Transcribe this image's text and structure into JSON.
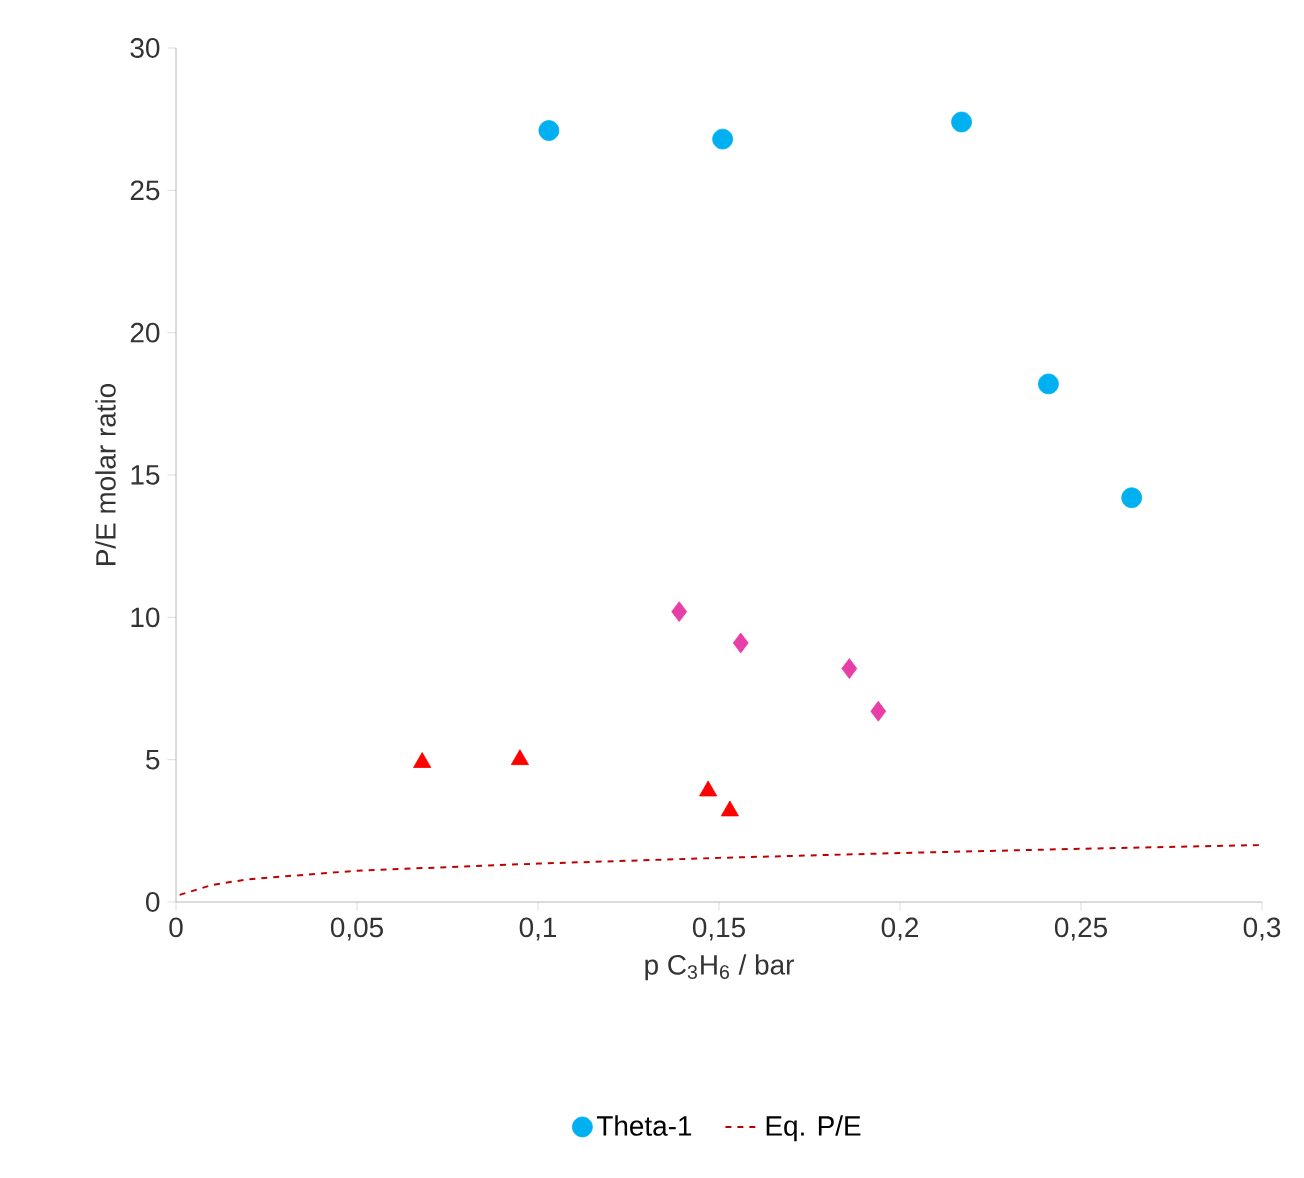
{
  "chart_data": {
    "type": "scatter",
    "xlabel": "p C$_{3}$H$_{6}$ / bar",
    "ylabel": "P/E molar ratio",
    "xlim": [
      0,
      0.3
    ],
    "ylim": [
      0,
      30
    ],
    "xticks": [
      0,
      {
        "value": 0.05,
        "label": "0,05"
      },
      {
        "value": 0.1,
        "label": "0,1"
      },
      {
        "value": 0.15,
        "label": "0,15"
      },
      {
        "value": 0.2,
        "label": "0,2"
      },
      {
        "value": 0.25,
        "label": "0,25"
      },
      {
        "value": 0.3,
        "label": "0,3"
      }
    ],
    "yticks": [
      0,
      5,
      10,
      15,
      20,
      25,
      30
    ],
    "legend": "bottom",
    "series": [
      {
        "name": "Theta-1",
        "color": "#00b0f0",
        "marker": "circle",
        "x": [
          0.103,
          0.151,
          0.217,
          0.241,
          0.264
        ],
        "values": [
          27.1,
          26.8,
          27.4,
          18.2,
          14.2
        ]
      },
      {
        "color": "#ff0000",
        "marker": "triangle",
        "x": [
          0.068,
          0.095,
          0.147,
          0.153
        ],
        "values": [
          4.9,
          5.0,
          3.9,
          3.2
        ]
      },
      {
        "color": "#e83ea8",
        "marker": "diamond",
        "x": [
          0.139,
          0.156,
          0.186,
          0.194
        ],
        "values": [
          10.2,
          9.1,
          8.2,
          6.7
        ]
      },
      {
        "name": "Eq. P/E",
        "type": "line",
        "color": "#c00000",
        "line_style": "dashed",
        "marker": "none",
        "x": [
          0.001,
          0.01,
          0.02,
          0.05,
          0.1,
          0.15,
          0.2,
          0.25,
          0.3
        ],
        "values": [
          0.25,
          0.6,
          0.8,
          1.1,
          1.35,
          1.55,
          1.72,
          1.87,
          2.0
        ]
      }
    ]
  }
}
